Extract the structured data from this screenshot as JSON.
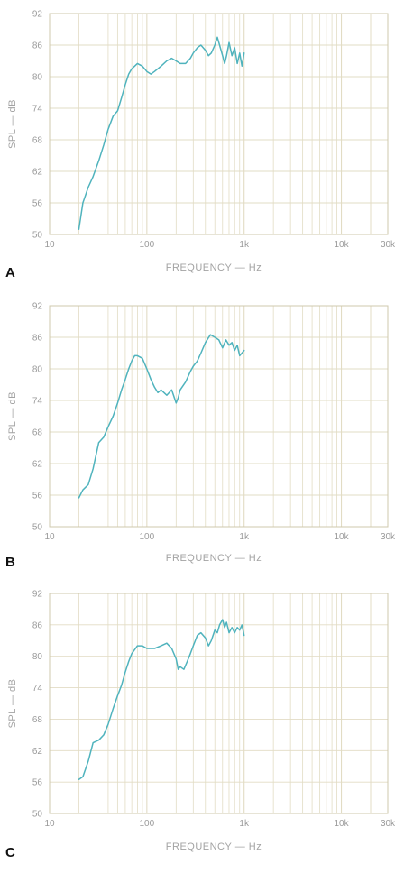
{
  "colors": {
    "grid": "#e2dcc4",
    "frame": "#cfc8ad",
    "curve": "#4fb3bd",
    "text": "#9a9a9a",
    "label": "#111111"
  },
  "chart_data": [
    {
      "type": "line",
      "panel_label": "A",
      "xlabel": "FREQUENCY — Hz",
      "ylabel": "SPL — dB",
      "xscale": "log",
      "xlim": [
        10,
        30000
      ],
      "ylim": [
        50,
        92
      ],
      "xticks": [
        {
          "v": 10,
          "label": "10"
        },
        {
          "v": 100,
          "label": "100"
        },
        {
          "v": 1000,
          "label": "1k"
        },
        {
          "v": 10000,
          "label": "10k"
        },
        {
          "v": 30000,
          "label": "30k"
        }
      ],
      "yticks": [
        50,
        56,
        62,
        68,
        74,
        80,
        86,
        92
      ],
      "grid": true,
      "series": [
        {
          "x": [
            20,
            22,
            25,
            28,
            32,
            36,
            40,
            45,
            50,
            55,
            60,
            65,
            70,
            80,
            90,
            100,
            110,
            120,
            140,
            160,
            180,
            200,
            220,
            250,
            280,
            300,
            330,
            360,
            400,
            430,
            460,
            500,
            530,
            560,
            600,
            630,
            660,
            700,
            750,
            800,
            850,
            900,
            950,
            1000
          ],
          "y": [
            51,
            56,
            59,
            61,
            64,
            67,
            70,
            72.5,
            73.5,
            76,
            78.5,
            80.5,
            81.5,
            82.5,
            82,
            81,
            80.5,
            81,
            82,
            83,
            83.5,
            83,
            82.5,
            82.5,
            83.5,
            84.5,
            85.5,
            86,
            85,
            84,
            84.5,
            86,
            87.5,
            86,
            84,
            82.5,
            84,
            86.5,
            84,
            85.5,
            82.5,
            84.5,
            82,
            84.5
          ]
        }
      ]
    },
    {
      "type": "line",
      "panel_label": "B",
      "xlabel": "FREQUENCY — Hz",
      "ylabel": "SPL — dB",
      "xscale": "log",
      "xlim": [
        10,
        30000
      ],
      "ylim": [
        50,
        92
      ],
      "xticks": [
        {
          "v": 10,
          "label": "10"
        },
        {
          "v": 100,
          "label": "100"
        },
        {
          "v": 1000,
          "label": "1k"
        },
        {
          "v": 10000,
          "label": "10k"
        },
        {
          "v": 30000,
          "label": "30k"
        }
      ],
      "yticks": [
        50,
        56,
        62,
        68,
        74,
        80,
        86,
        92
      ],
      "grid": true,
      "series": [
        {
          "x": [
            20,
            22,
            25,
            28,
            32,
            36,
            40,
            45,
            50,
            55,
            60,
            65,
            70,
            75,
            80,
            90,
            100,
            110,
            120,
            130,
            140,
            150,
            160,
            180,
            200,
            210,
            220,
            250,
            280,
            300,
            330,
            360,
            400,
            450,
            500,
            550,
            600,
            650,
            700,
            750,
            800,
            850,
            900,
            1000
          ],
          "y": [
            55.5,
            57,
            58,
            61,
            66,
            67,
            69,
            71,
            73.5,
            76,
            78,
            80,
            81.5,
            82.5,
            82.5,
            82,
            80,
            78,
            76.5,
            75.5,
            76,
            75.5,
            75,
            76,
            73.5,
            74.5,
            76,
            77.5,
            79.5,
            80.5,
            81.5,
            83,
            85,
            86.5,
            86,
            85.5,
            84,
            85.5,
            84.5,
            85,
            83.5,
            84.5,
            82.5,
            83.5
          ]
        }
      ]
    },
    {
      "type": "line",
      "panel_label": "C",
      "xlabel": "FREQUENCY — Hz",
      "ylabel": "SPL — dB",
      "xscale": "log",
      "xlim": [
        10,
        30000
      ],
      "ylim": [
        50,
        92
      ],
      "xticks": [
        {
          "v": 10,
          "label": "10"
        },
        {
          "v": 100,
          "label": "100"
        },
        {
          "v": 1000,
          "label": "1k"
        },
        {
          "v": 10000,
          "label": "10k"
        },
        {
          "v": 30000,
          "label": "30k"
        }
      ],
      "yticks": [
        50,
        56,
        62,
        68,
        74,
        80,
        86,
        92
      ],
      "grid": true,
      "series": [
        {
          "x": [
            20,
            22,
            25,
            28,
            32,
            36,
            40,
            45,
            50,
            55,
            60,
            65,
            70,
            80,
            90,
            100,
            110,
            120,
            140,
            160,
            180,
            200,
            210,
            220,
            240,
            260,
            280,
            300,
            330,
            360,
            400,
            430,
            460,
            500,
            530,
            560,
            600,
            630,
            660,
            700,
            750,
            800,
            850,
            900,
            950,
            1000
          ],
          "y": [
            56.5,
            57,
            60,
            63.5,
            64,
            65,
            67,
            70,
            72.5,
            74.5,
            77,
            79,
            80.5,
            82,
            82,
            81.5,
            81.5,
            81.5,
            82,
            82.5,
            81.5,
            79.5,
            77.5,
            78,
            77.5,
            79,
            80.5,
            82,
            84,
            84.5,
            83.5,
            82,
            83,
            85,
            84.5,
            86,
            87,
            85.5,
            86.5,
            84.5,
            85.5,
            84.5,
            85.5,
            85,
            86,
            84
          ]
        }
      ]
    }
  ]
}
